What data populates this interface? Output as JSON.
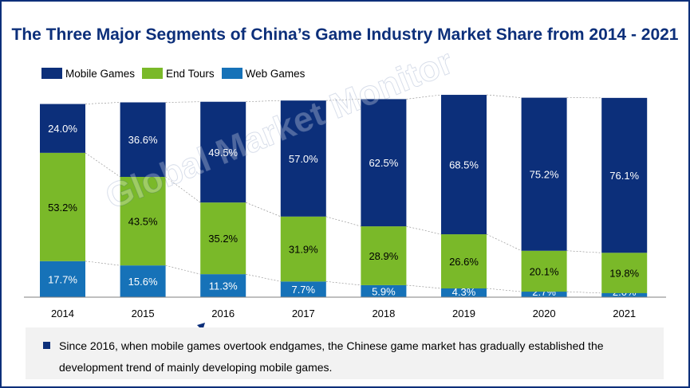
{
  "title": "The Three Major Segments of China’s Game Industry Market Share from 2014 - 2021",
  "legend": {
    "mobile": "Mobile Games",
    "end": "End Tours",
    "web": "Web Games"
  },
  "colors": {
    "mobile": "#0c2f7a",
    "end": "#7ab929",
    "web": "#1672b8",
    "title": "#0c2f7a"
  },
  "watermark": "Global Market Monitor",
  "note": {
    "text": "Since 2016, when mobile games overtook endgames, the Chinese game market has gradually established the development trend of mainly developing mobile games."
  },
  "chart_data": {
    "type": "bar",
    "stacked": true,
    "categories": [
      "2014",
      "2015",
      "2016",
      "2017",
      "2018",
      "2019",
      "2020",
      "2021"
    ],
    "series": [
      {
        "name": "Web Games",
        "values": [
          17.7,
          15.6,
          11.3,
          7.7,
          5.9,
          4.3,
          2.7,
          2.0
        ],
        "labels": [
          "17.7%",
          "15.6%",
          "11.3%",
          "7.7%",
          "5.9%",
          "4.3%",
          "2.7%",
          "2.0%"
        ]
      },
      {
        "name": "End Tours",
        "values": [
          53.2,
          43.5,
          35.2,
          31.9,
          28.9,
          26.6,
          20.1,
          19.8
        ],
        "labels": [
          "53.2%",
          "43.5%",
          "35.2%",
          "31.9%",
          "28.9%",
          "26.6%",
          "20.1%",
          "19.8%"
        ]
      },
      {
        "name": "Mobile Games",
        "values": [
          24.0,
          36.6,
          49.5,
          57.0,
          62.5,
          68.5,
          75.2,
          76.1
        ],
        "labels": [
          "24.0%",
          "36.6%",
          "49.5%",
          "57.0%",
          "62.5%",
          "68.5%",
          "75.2%",
          "76.1%"
        ]
      }
    ],
    "legend_position": "top-left",
    "grid": false
  }
}
